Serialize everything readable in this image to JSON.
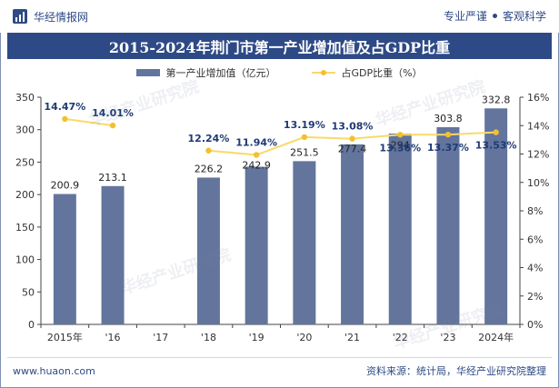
{
  "header": {
    "brand": "华经情报网",
    "tag1": "专业严谨",
    "tag2": "客观科学"
  },
  "watermark": "华经产业研究院",
  "chart_data": {
    "type": "bar+line",
    "title": "2015-2024年荆门市第一产业增加值及占GDP比重",
    "categories": [
      "2015年",
      "'16",
      "'17",
      "'18",
      "'19",
      "'20",
      "'21",
      "'22",
      "'23",
      "2024年"
    ],
    "series": [
      {
        "name": "第一产业增加值（亿元）",
        "type": "bar",
        "axis": "left",
        "values": [
          200.9,
          213.1,
          null,
          226.2,
          242.9,
          251.5,
          277.4,
          294,
          303.8,
          332.8
        ],
        "labels": [
          "200.9",
          "213.1",
          "",
          "226.2",
          "242.9",
          "251.5",
          "277.4",
          "294",
          "303.8",
          "332.8"
        ],
        "color": "#63759d"
      },
      {
        "name": "占GDP比重（%）",
        "type": "line",
        "axis": "right",
        "values": [
          14.47,
          14.01,
          null,
          12.24,
          11.94,
          13.19,
          13.08,
          13.36,
          13.37,
          13.53
        ],
        "labels": [
          "14.47%",
          "14.01%",
          "",
          "12.24%",
          "11.94%",
          "13.19%",
          "13.08%",
          "13.36%",
          "13.37%",
          "13.53%"
        ],
        "color": "#f2c030"
      }
    ],
    "y_left": {
      "min": 0,
      "max": 350,
      "ticks": [
        "0",
        "50",
        "100",
        "150",
        "200",
        "250",
        "300",
        "350"
      ]
    },
    "y_right": {
      "min": 0,
      "max": 16,
      "ticks": [
        "0%",
        "2%",
        "4%",
        "6%",
        "8%",
        "10%",
        "12%",
        "14%",
        "16%"
      ]
    }
  },
  "footer": {
    "website": "www.huaon.com",
    "source": "资料来源：统计局，华经产业研究院整理"
  }
}
